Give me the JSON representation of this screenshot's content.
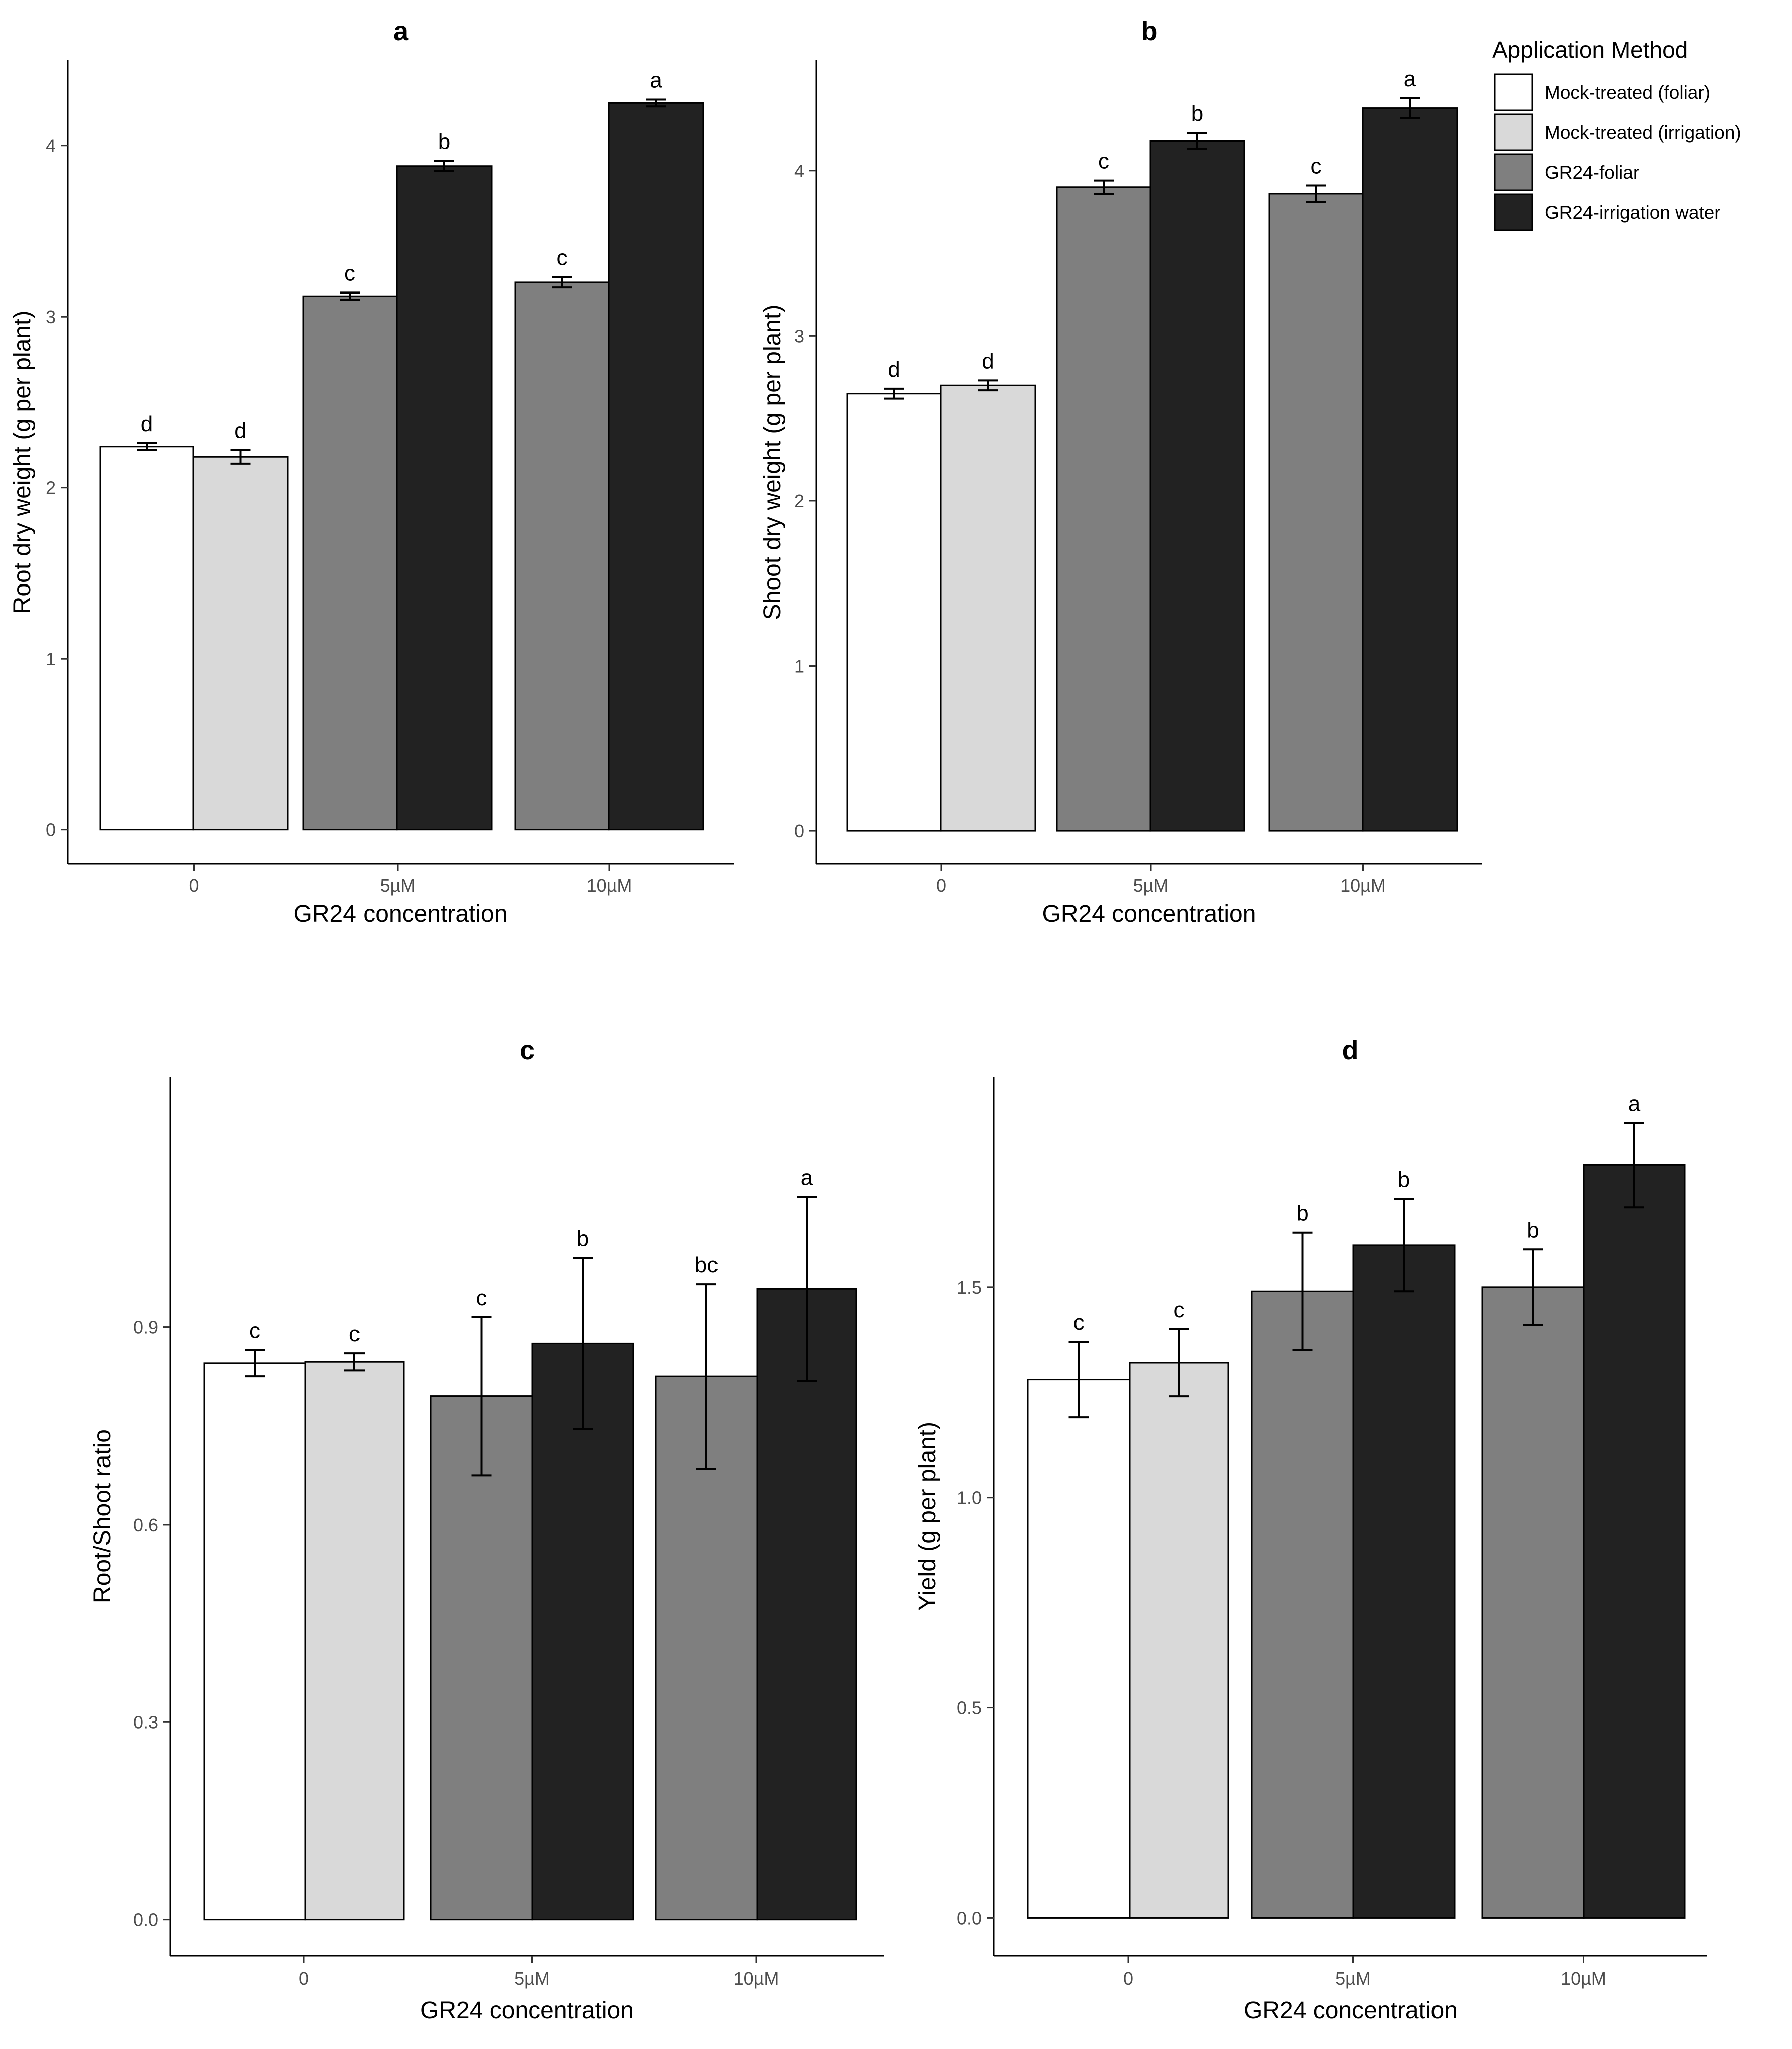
{
  "legend": {
    "title": "Application Method",
    "position": "top-right",
    "entries": [
      {
        "key": "mock_foliar",
        "label": "Mock-treated (foliar)",
        "color": "#ffffff"
      },
      {
        "key": "mock_irrigation",
        "label": "Mock-treated (irrigation)",
        "color": "#d9d9d9"
      },
      {
        "key": "gr24_foliar",
        "label": "GR24-foliar",
        "color": "#7f7f7f"
      },
      {
        "key": "gr24_irrigation",
        "label": "GR24-irrigation water",
        "color": "#222222"
      }
    ]
  },
  "chart_data": [
    {
      "panel": "a",
      "type": "bar",
      "title": "a",
      "xlabel": "GR24 concentration",
      "ylabel": "Root dry weight (g per plant)",
      "categories": [
        "0",
        "5µM",
        "10µM"
      ],
      "ylim": [
        -0.2,
        4.5
      ],
      "yticks": [
        0,
        1,
        2,
        3,
        4
      ],
      "ytick_labels": [
        "0",
        "1",
        "2",
        "3",
        "4"
      ],
      "grid": false,
      "bars": [
        {
          "category": "0",
          "series": "mock_foliar",
          "value": 2.24,
          "error": 0.02,
          "label": "d"
        },
        {
          "category": "0",
          "series": "mock_irrigation",
          "value": 2.18,
          "error": 0.04,
          "label": "d"
        },
        {
          "category": "5µM",
          "series": "gr24_foliar",
          "value": 3.12,
          "error": 0.02,
          "label": "c"
        },
        {
          "category": "5µM",
          "series": "gr24_irrigation",
          "value": 3.88,
          "error": 0.03,
          "label": "b"
        },
        {
          "category": "10µM",
          "series": "gr24_foliar",
          "value": 3.2,
          "error": 0.03,
          "label": "c"
        },
        {
          "category": "10µM",
          "series": "gr24_irrigation",
          "value": 4.25,
          "error": 0.02,
          "label": "a"
        }
      ]
    },
    {
      "panel": "b",
      "type": "bar",
      "title": "b",
      "xlabel": "GR24 concentration",
      "ylabel": "Shoot dry weight (g per plant)",
      "categories": [
        "0",
        "5µM",
        "10µM"
      ],
      "ylim": [
        -0.2,
        4.67
      ],
      "yticks": [
        0,
        1,
        2,
        3,
        4
      ],
      "ytick_labels": [
        "0",
        "1",
        "2",
        "3",
        "4"
      ],
      "grid": false,
      "bars": [
        {
          "category": "0",
          "series": "mock_foliar",
          "value": 2.65,
          "error": 0.03,
          "label": "d"
        },
        {
          "category": "0",
          "series": "mock_irrigation",
          "value": 2.7,
          "error": 0.03,
          "label": "d"
        },
        {
          "category": "5µM",
          "series": "gr24_foliar",
          "value": 3.9,
          "error": 0.04,
          "label": "c"
        },
        {
          "category": "5µM",
          "series": "gr24_irrigation",
          "value": 4.18,
          "error": 0.05,
          "label": "b"
        },
        {
          "category": "10µM",
          "series": "gr24_foliar",
          "value": 3.86,
          "error": 0.05,
          "label": "c"
        },
        {
          "category": "10µM",
          "series": "gr24_irrigation",
          "value": 4.38,
          "error": 0.06,
          "label": "a"
        }
      ]
    },
    {
      "panel": "c",
      "type": "bar",
      "title": "c",
      "xlabel": "GR24 concentration",
      "ylabel": "Root/Shoot ratio",
      "categories": [
        "0",
        "5µM",
        "10µM"
      ],
      "ylim": [
        -0.055,
        1.28
      ],
      "yticks": [
        0,
        0.3,
        0.6,
        0.9
      ],
      "ytick_labels": [
        "0.0",
        "0.3",
        "0.6",
        "0.9"
      ],
      "grid": false,
      "bars": [
        {
          "category": "0",
          "series": "mock_foliar",
          "value": 0.845,
          "error": 0.02,
          "label": "c"
        },
        {
          "category": "0",
          "series": "mock_irrigation",
          "value": 0.847,
          "error": 0.013,
          "label": "c"
        },
        {
          "category": "5µM",
          "series": "gr24_foliar",
          "value": 0.795,
          "error": 0.12,
          "label": "c"
        },
        {
          "category": "5µM",
          "series": "gr24_irrigation",
          "value": 0.875,
          "error": 0.13,
          "label": "b"
        },
        {
          "category": "10µM",
          "series": "gr24_foliar",
          "value": 0.825,
          "error": 0.14,
          "label": "bc"
        },
        {
          "category": "10µM",
          "series": "gr24_irrigation",
          "value": 0.958,
          "error": 0.14,
          "label": "a"
        }
      ]
    },
    {
      "panel": "d",
      "type": "bar",
      "title": "d",
      "xlabel": "GR24 concentration",
      "ylabel": "Yield (g per plant)",
      "categories": [
        "0",
        "5µM",
        "10µM"
      ],
      "ylim": [
        -0.09,
        2.0
      ],
      "yticks": [
        0,
        0.5,
        1.0,
        1.5
      ],
      "ytick_labels": [
        "0.0",
        "0.5",
        "1.0",
        "1.5"
      ],
      "grid": false,
      "bars": [
        {
          "category": "0",
          "series": "mock_foliar",
          "value": 1.28,
          "error": 0.09,
          "label": "c"
        },
        {
          "category": "0",
          "series": "mock_irrigation",
          "value": 1.32,
          "error": 0.08,
          "label": "c"
        },
        {
          "category": "5µM",
          "series": "gr24_foliar",
          "value": 1.49,
          "error": 0.14,
          "label": "b"
        },
        {
          "category": "5µM",
          "series": "gr24_irrigation",
          "value": 1.6,
          "error": 0.11,
          "label": "b"
        },
        {
          "category": "10µM",
          "series": "gr24_foliar",
          "value": 1.5,
          "error": 0.09,
          "label": "b"
        },
        {
          "category": "10µM",
          "series": "gr24_irrigation",
          "value": 1.79,
          "error": 0.1,
          "label": "a"
        }
      ]
    }
  ]
}
